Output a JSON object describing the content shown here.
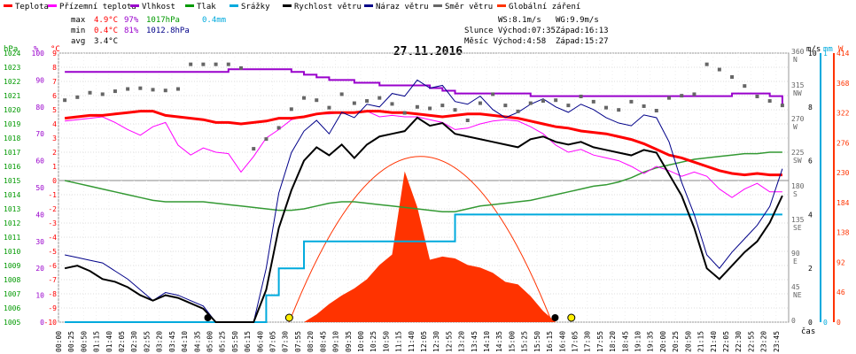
{
  "chart_data": {
    "type": "line",
    "title": "27.11.2016",
    "legend": [
      {
        "label": "Teplota",
        "color": "#ff0000"
      },
      {
        "label": "Přízemní teplota",
        "color": "#ff00ff"
      },
      {
        "label": "Vlhkost",
        "color": "#9900cc"
      },
      {
        "label": "Tlak",
        "color": "#009900"
      },
      {
        "label": "Srážky",
        "color": "#00aadd"
      },
      {
        "label": "Rychlost větru",
        "color": "#000000"
      },
      {
        "label": "Náraz větru",
        "color": "#000088"
      },
      {
        "label": "Směr větru",
        "color": "#666666"
      },
      {
        "label": "Globální záření",
        "color": "#ff3300"
      }
    ],
    "stats": {
      "max": {
        "label": "max",
        "temp": "4.9°C",
        "hum": "97%",
        "press": "1017hPa",
        "rain": "0.4mm"
      },
      "min": {
        "label": "min",
        "temp": "0.4°C",
        "hum": "81%",
        "press": "1012.8hPa"
      },
      "avg": {
        "label": "avg",
        "temp": "3.4°C"
      }
    },
    "sun": {
      "ws": "WS:8.1m/s",
      "wg": "WG:9.9m/s",
      "slunce": "Slunce Východ:07:35",
      "slunce_zapad": "Západ:16:13",
      "mesic": "Měsíc  Východ:4:58",
      "mesic_zapad": "Západ:15:27"
    },
    "axes": {
      "hpa_title": "hPa",
      "pct_title": "%",
      "c_title": "°C",
      "ms_title": "m/s",
      "mm_title": "mm",
      "w_title": "W",
      "hpa_ticks": [
        "1024",
        "1023",
        "1022",
        "1021",
        "1020",
        "1019",
        "1018",
        "1017",
        "1016",
        "1015",
        "1014",
        "1013",
        "1012",
        "1011",
        "1010",
        "1009",
        "1008",
        "1007",
        "1006",
        "1005"
      ],
      "pct_ticks": [
        "100",
        "90",
        "80",
        "70",
        "60",
        "50",
        "40",
        "30",
        "20",
        "10",
        "0"
      ],
      "c_ticks": [
        "9",
        "8",
        "7",
        "6",
        "5",
        "4",
        "3",
        "2",
        "1",
        "0",
        "-1",
        "-2",
        "-3",
        "-4",
        "-5",
        "-6",
        "-7",
        "-8",
        "-9",
        "-10"
      ],
      "dir_ticks": [
        {
          "v": "360",
          "d": "N"
        },
        {
          "v": "315",
          "d": "NW"
        },
        {
          "v": "270",
          "d": "W"
        },
        {
          "v": "225",
          "d": "SW"
        },
        {
          "v": "180",
          "d": "S"
        },
        {
          "v": "135",
          "d": "SE"
        },
        {
          "v": "90",
          "d": "E"
        },
        {
          "v": "45",
          "d": "NE"
        },
        {
          "v": "0",
          "d": ""
        }
      ],
      "ms_ticks": [
        "10",
        "8",
        "6",
        "4",
        "2",
        "0"
      ],
      "mm_ticks": [
        "1",
        "0"
      ],
      "w_ticks": [
        "414",
        "368",
        "322",
        "276",
        "230",
        "184",
        "138",
        "92",
        "46",
        "0"
      ],
      "x_label": "čas",
      "x_ticks": [
        "00:00",
        "00:25",
        "00:50",
        "01:15",
        "01:40",
        "02:05",
        "02:30",
        "02:55",
        "03:20",
        "03:45",
        "04:10",
        "04:35",
        "05:00",
        "05:25",
        "05:50",
        "06:15",
        "06:40",
        "07:05",
        "07:30",
        "07:55",
        "08:20",
        "08:45",
        "09:10",
        "09:35",
        "10:00",
        "10:25",
        "10:50",
        "11:15",
        "11:40",
        "12:05",
        "12:30",
        "12:55",
        "13:20",
        "13:45",
        "14:10",
        "14:35",
        "15:00",
        "15:25",
        "15:50",
        "16:15",
        "16:40",
        "17:05",
        "17:30",
        "17:55",
        "18:20",
        "18:45",
        "19:10",
        "19:35",
        "20:00",
        "20:25",
        "20:50",
        "21:15",
        "21:40",
        "22:05",
        "22:30",
        "22:55",
        "23:20",
        "23:45"
      ]
    },
    "series": {
      "temperature_c": [
        4.4,
        4.5,
        4.6,
        4.6,
        4.7,
        4.8,
        4.9,
        4.9,
        4.6,
        4.5,
        4.4,
        4.3,
        4.1,
        4.1,
        4.0,
        4.1,
        4.2,
        4.4,
        4.4,
        4.5,
        4.7,
        4.8,
        4.8,
        4.8,
        4.9,
        4.9,
        4.8,
        4.8,
        4.7,
        4.6,
        4.5,
        4.6,
        4.7,
        4.7,
        4.6,
        4.5,
        4.4,
        4.2,
        4.0,
        3.8,
        3.7,
        3.5,
        3.4,
        3.3,
        3.1,
        2.9,
        2.6,
        2.2,
        1.8,
        1.6,
        1.3,
        1.0,
        0.7,
        0.5,
        0.4,
        0.5,
        0.4,
        0.4
      ],
      "ground_temp_c": [
        4.2,
        4.3,
        4.4,
        4.5,
        4.1,
        3.6,
        3.2,
        3.8,
        4.1,
        2.5,
        1.8,
        2.3,
        2.0,
        1.9,
        0.6,
        1.7,
        3.0,
        3.6,
        4.3,
        4.5,
        4.7,
        4.7,
        4.8,
        4.8,
        4.9,
        4.5,
        4.6,
        4.5,
        4.5,
        4.3,
        4.1,
        3.6,
        3.7,
        4.0,
        4.2,
        4.3,
        4.2,
        3.8,
        3.3,
        2.5,
        2.0,
        2.2,
        1.8,
        1.6,
        1.4,
        1.0,
        0.5,
        1.0,
        0.7,
        0.3,
        0.6,
        0.3,
        -0.6,
        -1.2,
        -0.6,
        -0.2,
        -0.8,
        -0.8
      ],
      "humidity_pct": [
        93,
        93,
        93,
        93,
        93,
        93,
        93,
        93,
        93,
        93,
        93,
        93,
        93,
        94,
        94,
        94,
        94,
        94,
        93,
        92,
        91,
        90,
        90,
        89,
        89,
        88,
        88,
        88,
        88,
        87,
        86,
        85,
        85,
        85,
        85,
        85,
        85,
        84,
        84,
        84,
        84,
        84,
        84,
        84,
        84,
        84,
        84,
        84,
        84,
        84,
        84,
        84,
        84,
        85,
        85,
        85,
        84,
        81
      ],
      "pressure_hpa": [
        1015.0,
        1014.8,
        1014.6,
        1014.4,
        1014.2,
        1014.0,
        1013.8,
        1013.6,
        1013.5,
        1013.5,
        1013.5,
        1013.5,
        1013.4,
        1013.3,
        1013.2,
        1013.1,
        1013.0,
        1012.9,
        1012.9,
        1013.0,
        1013.2,
        1013.4,
        1013.5,
        1013.5,
        1013.4,
        1013.3,
        1013.2,
        1013.1,
        1013.0,
        1012.9,
        1012.8,
        1012.8,
        1013.0,
        1013.2,
        1013.3,
        1013.4,
        1013.5,
        1013.6,
        1013.8,
        1014.0,
        1014.2,
        1014.4,
        1014.6,
        1014.7,
        1014.9,
        1015.2,
        1015.6,
        1015.9,
        1016.1,
        1016.3,
        1016.5,
        1016.6,
        1016.7,
        1016.8,
        1016.9,
        1016.9,
        1017.0,
        1017.0
      ],
      "rain_mm": [
        0,
        0,
        0,
        0,
        0,
        0,
        0,
        0,
        0,
        0,
        0,
        0,
        0,
        0,
        0,
        0,
        0.1,
        0.2,
        0.2,
        0.3,
        0.3,
        0.3,
        0.3,
        0.3,
        0.3,
        0.3,
        0.3,
        0.3,
        0.3,
        0.3,
        0.3,
        0.4,
        0.4,
        0.4,
        0.4,
        0.4,
        0.4,
        0.4,
        0.4,
        0.4,
        0.4,
        0.4,
        0.4,
        0.4,
        0.4,
        0.4,
        0.4,
        0.4,
        0.4,
        0.4,
        0.4,
        0.4,
        0.4,
        0.4,
        0.4,
        0.4,
        0.4,
        0.4
      ],
      "wind_speed_ms": [
        2.0,
        2.1,
        1.9,
        1.6,
        1.5,
        1.3,
        1.0,
        0.8,
        1.0,
        0.9,
        0.7,
        0.5,
        0,
        0,
        0,
        0,
        1.2,
        3.5,
        4.9,
        6.0,
        6.5,
        6.2,
        6.6,
        6.1,
        6.6,
        6.9,
        7.0,
        7.1,
        7.6,
        7.3,
        7.4,
        7.0,
        6.9,
        6.8,
        6.7,
        6.6,
        6.5,
        6.8,
        6.9,
        6.7,
        6.6,
        6.7,
        6.5,
        6.4,
        6.3,
        6.2,
        6.4,
        6.3,
        5.5,
        4.7,
        3.5,
        2.0,
        1.6,
        2.1,
        2.6,
        3.0,
        3.7,
        4.7
      ],
      "wind_gust_ms": [
        2.5,
        2.4,
        2.3,
        2.2,
        1.9,
        1.6,
        1.2,
        0.8,
        1.1,
        1.0,
        0.8,
        0.6,
        0,
        0,
        0,
        0,
        2.0,
        4.8,
        6.3,
        7.1,
        7.5,
        7.0,
        7.8,
        7.6,
        8.1,
        8.0,
        8.5,
        8.4,
        9.0,
        8.7,
        8.8,
        8.2,
        8.1,
        8.4,
        7.9,
        7.6,
        7.8,
        8.1,
        8.3,
        8.0,
        7.8,
        8.1,
        7.9,
        7.6,
        7.4,
        7.3,
        7.7,
        7.6,
        6.7,
        5.2,
        4.0,
        2.5,
        2.0,
        2.6,
        3.1,
        3.6,
        4.3,
        5.7
      ],
      "wind_dir_deg": [
        297,
        301,
        307,
        305,
        309,
        312,
        313,
        311,
        310,
        312,
        345,
        345,
        345,
        345,
        340,
        232,
        245,
        260,
        285,
        300,
        297,
        287,
        305,
        293,
        296,
        300,
        292,
        280,
        288,
        286,
        290,
        284,
        270,
        293,
        305,
        290,
        282,
        293,
        296,
        297,
        290,
        302,
        295,
        287,
        284,
        295,
        289,
        283,
        300,
        303,
        305,
        345,
        338,
        328,
        316,
        302,
        296,
        290
      ],
      "solar_wm2": [
        0,
        0,
        0,
        0,
        0,
        0,
        0,
        0,
        0,
        0,
        0,
        0,
        0,
        0,
        0,
        0,
        0,
        0,
        0,
        0,
        12,
        28,
        41,
        52,
        66,
        88,
        104,
        232,
        177,
        96,
        101,
        98,
        88,
        84,
        76,
        62,
        58,
        40,
        17,
        0,
        0,
        0,
        0,
        0,
        0,
        0,
        0,
        0,
        0,
        0,
        0,
        0,
        0,
        0,
        0,
        0,
        0,
        0
      ]
    },
    "ylim": {
      "hpa": [
        1005,
        1024
      ],
      "pct": [
        0,
        100
      ],
      "c": [
        -10,
        9
      ],
      "dir": [
        0,
        360
      ],
      "ms": [
        0,
        10
      ],
      "mm": [
        0,
        1
      ],
      "w": [
        0,
        414
      ]
    }
  }
}
